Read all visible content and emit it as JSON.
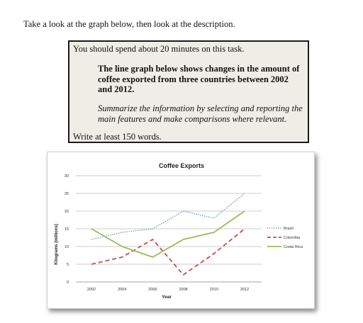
{
  "intro_text": "Take a look at the graph below, then look at the description.",
  "task_box": {
    "line1": "You should spend about 20 minutes on this task.",
    "prompt": "The line graph below shows changes in the amount of coffee exported from three countries between 2002 and 2012.",
    "instruction": "Summarize the information by selecting and reporting the main features and make comparisons where relevant.",
    "word_count": "Write at least 150 words."
  },
  "chart_data": {
    "type": "line",
    "title": "Coffee Exports",
    "xlabel": "Year",
    "ylabel": "Kilograms (millions)",
    "x": [
      "2002",
      "2004",
      "2006",
      "2008",
      "2010",
      "2012"
    ],
    "ylim": [
      0,
      30
    ],
    "yticks": [
      "0",
      "5",
      "10",
      "15",
      "20",
      "25",
      "30"
    ],
    "grid": true,
    "legend_position": "right",
    "series": [
      {
        "name": "Brazil",
        "values": [
          12,
          14,
          15,
          20,
          18,
          25
        ],
        "color": "#4f81bd",
        "style": "dotted"
      },
      {
        "name": "Colombia",
        "values": [
          5,
          7,
          12,
          2,
          8,
          15
        ],
        "color": "#c0504d",
        "style": "dashed"
      },
      {
        "name": "Costa Rica",
        "values": [
          15,
          10,
          7,
          12,
          14,
          20
        ],
        "color": "#9bbb59",
        "style": "solid"
      }
    ]
  }
}
